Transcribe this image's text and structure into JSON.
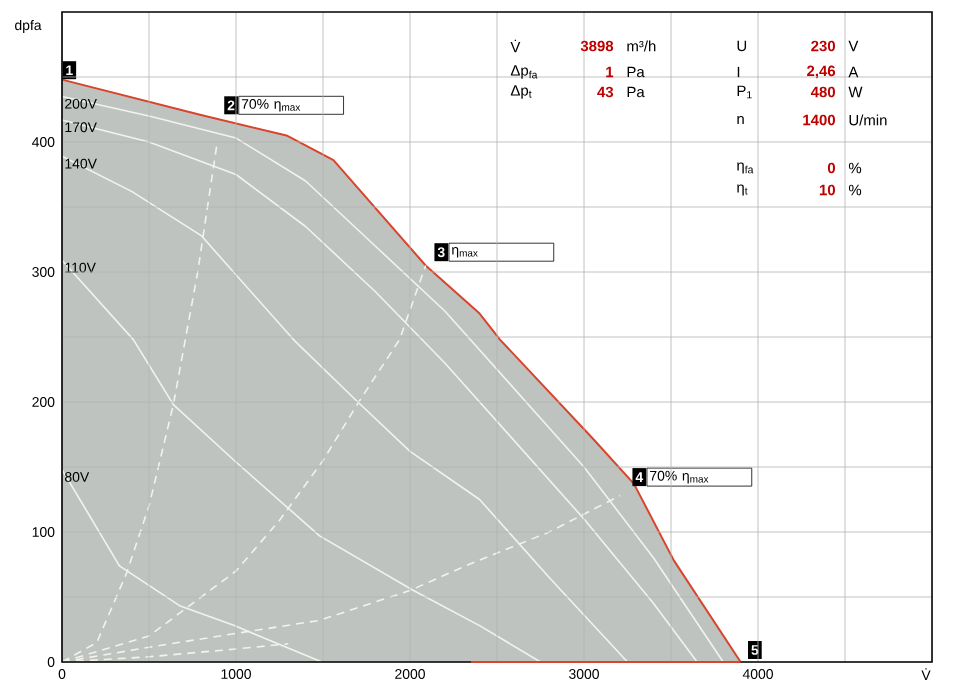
{
  "chart_data": {
    "type": "line",
    "xlabel": "V̇",
    "ylabel": "dpfa",
    "xlim": [
      0,
      5000
    ],
    "ylim": [
      0,
      500
    ],
    "xticks": [
      0,
      {
        "value": 500,
        "label": null
      },
      1000,
      {
        "value": 1500,
        "label": null
      },
      2000,
      {
        "value": 2500,
        "label": null
      },
      3000,
      {
        "value": 3500,
        "label": null
      },
      4000,
      {
        "value": 4500,
        "label": null
      }
    ],
    "yticks": [
      0,
      {
        "value": 50,
        "label": null
      },
      100,
      {
        "value": 150,
        "label": null
      },
      200,
      {
        "value": 250,
        "label": null
      },
      300,
      {
        "value": 350,
        "label": null
      },
      400,
      {
        "value": 450,
        "label": null
      }
    ],
    "grid": true,
    "series": [
      {
        "type": "area",
        "color": "#d9442c",
        "x": [
          0,
          793,
          1290,
          1560,
          2090,
          2400,
          2517,
          3057,
          3287,
          3517,
          3900
        ],
        "values": [
          448,
          421,
          405,
          386,
          305,
          268,
          248,
          171,
          137,
          78,
          0
        ]
      },
      {
        "type": "line",
        "name": "200V",
        "color": "#f2f2ee",
        "x": [
          0,
          500,
          1000,
          1400,
          1800,
          2200,
          2600,
          3000,
          3400,
          3800
        ],
        "values": [
          435,
          420,
          403,
          370,
          320,
          270,
          210,
          150,
          80,
          0
        ]
      },
      {
        "type": "line",
        "name": "170V",
        "color": "#f2f2ee",
        "x": [
          0,
          500,
          1000,
          1400,
          1800,
          2200,
          2600,
          3000,
          3400,
          3650
        ],
        "values": [
          417,
          400,
          375,
          335,
          285,
          230,
          170,
          110,
          45,
          0
        ]
      },
      {
        "type": "line",
        "name": "140V",
        "color": "#f2f2ee",
        "x": [
          0,
          400,
          800,
          1330,
          1700,
          2000,
          2400,
          2800,
          3250
        ],
        "values": [
          389,
          362,
          328,
          248,
          200,
          162,
          125,
          65,
          0
        ]
      },
      {
        "type": "line",
        "name": "110V",
        "color": "#f2f2ee",
        "x": [
          0,
          410,
          640,
          990,
          1480,
          2020,
          2400,
          2750
        ],
        "values": [
          309,
          248,
          198,
          155,
          97,
          55,
          28,
          0
        ]
      },
      {
        "type": "line",
        "name": "80V",
        "color": "#f2f2ee",
        "x": [
          0,
          330,
          680,
          990,
          1494
        ],
        "values": [
          148,
          74,
          43,
          28,
          0
        ]
      },
      {
        "type": "line",
        "line_style": "dashed",
        "color": "#f2f2ee",
        "x": [
          0,
          200,
          370,
          500,
          640,
          780,
          890
        ],
        "values": [
          0,
          15,
          68,
          120,
          198,
          300,
          398
        ]
      },
      {
        "type": "line",
        "line_style": "dashed",
        "color": "#f2f2ee",
        "x": [
          0,
          500,
          1000,
          1250,
          1500,
          1710,
          1940,
          2090
        ],
        "values": [
          0,
          20,
          70,
          109,
          155,
          201,
          248,
          305
        ]
      },
      {
        "type": "line",
        "line_style": "dashed",
        "color": "#f2f2ee",
        "x": [
          0,
          530,
          1000,
          1480,
          2000,
          2320,
          2800,
          3207
        ],
        "values": [
          0,
          12,
          22,
          32,
          55,
          74,
          100,
          128
        ]
      },
      {
        "type": "line",
        "line_style": "dashed",
        "color": "#f2f2ee",
        "x": [
          0,
          500,
          1000,
          1300
        ],
        "values": [
          0,
          4,
          10,
          14
        ]
      },
      {
        "color": "#d9442c",
        "x": [
          2350,
          3900
        ],
        "values": [
          0,
          0
        ]
      }
    ],
    "annotations": [
      {
        "text": "1",
        "x": 0,
        "y": 448
      },
      {
        "text": "2",
        "x": 930,
        "y": 421
      },
      {
        "text": "70% η$_{max}$",
        "x": 930,
        "y": 421
      },
      {
        "text": "3",
        "x": 2138,
        "y": 308
      },
      {
        "text": "η$_{max}$",
        "x": 2138,
        "y": 308
      },
      {
        "text": "4",
        "x": 3276,
        "y": 135
      },
      {
        "text": "70% η$_{max}$",
        "x": 3276,
        "y": 135
      },
      {
        "text": "5",
        "x": 3940,
        "y": 2
      },
      "V̇",
      "3898",
      "m³/h",
      "Δp$_{fa}$",
      "1",
      "Pa",
      "Δp$_{t}$",
      "43",
      "Pa",
      "U",
      "230",
      "V",
      "I",
      "2,46",
      "A",
      "P$_{1}$",
      "480",
      "W",
      "n",
      "1400",
      "U/min",
      "η$_{fa}$",
      "0",
      "%",
      "η$_{t}$",
      "10",
      "%"
    ]
  }
}
